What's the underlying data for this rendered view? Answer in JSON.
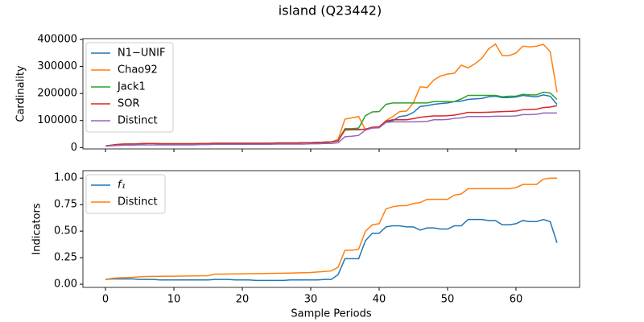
{
  "title": "island (Q23442)",
  "chart_data": [
    {
      "type": "line",
      "ylabel": "Cardinality",
      "xlim": [
        -3.3,
        69.3
      ],
      "ylim": [
        -5000,
        403000
      ],
      "xticks": [
        0,
        10,
        20,
        30,
        40,
        50,
        60
      ],
      "show_xtick_labels": false,
      "yticks": [
        0,
        100000,
        200000,
        300000,
        400000
      ],
      "legend": "upper left",
      "x": [
        0,
        1,
        2,
        3,
        4,
        5,
        6,
        7,
        8,
        9,
        10,
        11,
        12,
        13,
        14,
        15,
        16,
        17,
        18,
        19,
        20,
        21,
        22,
        23,
        24,
        25,
        26,
        27,
        28,
        29,
        30,
        31,
        32,
        33,
        34,
        35,
        36,
        37,
        38,
        39,
        40,
        41,
        42,
        43,
        44,
        45,
        46,
        47,
        48,
        49,
        50,
        51,
        52,
        53,
        54,
        55,
        56,
        57,
        58,
        59,
        60,
        61,
        62,
        63,
        64,
        65,
        66
      ],
      "series": [
        {
          "name": "N1−UNIF",
          "color": "#1f77b4",
          "values": [
            6000,
            9000,
            12000,
            13000,
            13000,
            14000,
            15000,
            15000,
            14000,
            14000,
            14000,
            14000,
            14000,
            14000,
            15000,
            15000,
            16000,
            16000,
            16000,
            16000,
            16000,
            16000,
            16000,
            16000,
            16000,
            17000,
            17000,
            17000,
            17000,
            18000,
            18000,
            19000,
            20000,
            21000,
            25000,
            65000,
            66000,
            66000,
            68000,
            75000,
            75000,
            95000,
            100000,
            115000,
            118000,
            130000,
            152000,
            155000,
            160000,
            163000,
            165000,
            170000,
            172000,
            178000,
            180000,
            182000,
            188000,
            190000,
            185000,
            185000,
            187000,
            193000,
            190000,
            188000,
            195000,
            190000,
            160000
          ]
        },
        {
          "name": "Chao92",
          "color": "#ff7f0e",
          "values": [
            6000,
            9000,
            12000,
            13000,
            13000,
            14000,
            15000,
            15000,
            14000,
            14000,
            14000,
            14000,
            14000,
            14000,
            15000,
            15000,
            16000,
            16000,
            16000,
            16000,
            16000,
            16000,
            16000,
            16000,
            16000,
            17000,
            17000,
            17000,
            17000,
            18000,
            18000,
            19000,
            20000,
            21000,
            30000,
            105000,
            110000,
            115000,
            65000,
            75000,
            75000,
            100000,
            115000,
            133000,
            135000,
            165000,
            225000,
            222000,
            250000,
            265000,
            272000,
            275000,
            305000,
            295000,
            310000,
            330000,
            365000,
            383000,
            340000,
            340000,
            350000,
            375000,
            373000,
            375000,
            382000,
            355000,
            205000
          ]
        },
        {
          "name": "Jack1",
          "color": "#2ca02c",
          "values": [
            6000,
            9000,
            12000,
            13000,
            13000,
            14000,
            15000,
            15000,
            14000,
            14000,
            14000,
            14000,
            14000,
            14000,
            15000,
            15000,
            16000,
            16000,
            16000,
            16000,
            16000,
            16000,
            16000,
            16000,
            16000,
            17000,
            17000,
            17000,
            17000,
            18000,
            18000,
            19000,
            20000,
            21000,
            25000,
            70000,
            70000,
            72000,
            118000,
            132000,
            133000,
            160000,
            165000,
            165000,
            165000,
            165000,
            165000,
            165000,
            170000,
            170000,
            170000,
            170000,
            180000,
            193000,
            193000,
            193000,
            193000,
            193000,
            188000,
            190000,
            190000,
            197000,
            195000,
            195000,
            205000,
            202000,
            178000
          ]
        },
        {
          "name": "SOR",
          "color": "#d62728",
          "values": [
            6000,
            9000,
            12000,
            13000,
            13000,
            14000,
            15000,
            15000,
            14000,
            14000,
            14000,
            14000,
            14000,
            14000,
            15000,
            15000,
            16000,
            16000,
            16000,
            16000,
            16000,
            16000,
            16000,
            16000,
            16000,
            17000,
            17000,
            17000,
            17000,
            18000,
            18000,
            19000,
            20000,
            21000,
            25000,
            65000,
            67000,
            67000,
            68000,
            75000,
            77000,
            98000,
            103000,
            103000,
            103000,
            107000,
            112000,
            115000,
            117000,
            117000,
            118000,
            120000,
            125000,
            130000,
            130000,
            130000,
            131000,
            132000,
            133000,
            134000,
            135000,
            140000,
            141000,
            142000,
            148000,
            150000,
            155000
          ]
        },
        {
          "name": "Distinct",
          "color": "#9467bd",
          "values": [
            5000,
            7000,
            8000,
            9000,
            9000,
            10000,
            10000,
            10000,
            10000,
            10000,
            10000,
            10000,
            10000,
            10000,
            11000,
            11000,
            12000,
            12000,
            12000,
            12000,
            12000,
            12000,
            12000,
            12000,
            12000,
            13000,
            13000,
            13000,
            13000,
            13000,
            14000,
            14000,
            15000,
            15000,
            18000,
            40000,
            42000,
            45000,
            65000,
            72000,
            73000,
            93000,
            95000,
            95000,
            95000,
            95000,
            96000,
            97000,
            103000,
            103000,
            104000,
            108000,
            110000,
            115000,
            115000,
            115000,
            115000,
            116000,
            116000,
            116000,
            117000,
            122000,
            122000,
            123000,
            128000,
            128000,
            128000
          ]
        }
      ]
    },
    {
      "type": "line",
      "ylabel": "Indicators",
      "xlabel": "Sample Periods",
      "xlim": [
        -3.3,
        69.3
      ],
      "ylim": [
        -0.03,
        1.07
      ],
      "xticks": [
        0,
        10,
        20,
        30,
        40,
        50,
        60
      ],
      "show_xtick_labels": true,
      "yticks": [
        {
          "value": 0,
          "label": "0.00"
        },
        {
          "value": 0.25,
          "label": "0.25"
        },
        {
          "value": 0.5,
          "label": "0.50"
        },
        {
          "value": 0.75,
          "label": "0.75"
        },
        {
          "value": 1,
          "label": "1.00"
        }
      ],
      "legend": "upper left",
      "x": [
        0,
        1,
        2,
        3,
        4,
        5,
        6,
        7,
        8,
        9,
        10,
        11,
        12,
        13,
        14,
        15,
        16,
        17,
        18,
        19,
        20,
        21,
        22,
        23,
        24,
        25,
        26,
        27,
        28,
        29,
        30,
        31,
        32,
        33,
        34,
        35,
        36,
        37,
        38,
        39,
        40,
        41,
        42,
        43,
        44,
        45,
        46,
        47,
        48,
        49,
        50,
        51,
        52,
        53,
        54,
        55,
        56,
        57,
        58,
        59,
        60,
        61,
        62,
        63,
        64,
        65,
        66
      ],
      "series": [
        {
          "name": "f₁",
          "color": "#1f77b4",
          "values": [
            0.045,
            0.05,
            0.05,
            0.05,
            0.05,
            0.045,
            0.045,
            0.045,
            0.04,
            0.04,
            0.04,
            0.04,
            0.04,
            0.04,
            0.04,
            0.04,
            0.045,
            0.045,
            0.045,
            0.04,
            0.04,
            0.04,
            0.035,
            0.035,
            0.035,
            0.035,
            0.035,
            0.04,
            0.04,
            0.04,
            0.04,
            0.04,
            0.045,
            0.045,
            0.09,
            0.24,
            0.24,
            0.24,
            0.41,
            0.48,
            0.48,
            0.54,
            0.55,
            0.55,
            0.54,
            0.54,
            0.51,
            0.53,
            0.53,
            0.52,
            0.52,
            0.55,
            0.55,
            0.61,
            0.61,
            0.61,
            0.6,
            0.6,
            0.56,
            0.56,
            0.57,
            0.6,
            0.59,
            0.59,
            0.61,
            0.59,
            0.39
          ]
        },
        {
          "name": "Distinct",
          "color": "#ff7f0e",
          "values": [
            0.045,
            0.055,
            0.06,
            0.062,
            0.065,
            0.07,
            0.072,
            0.073,
            0.074,
            0.075,
            0.075,
            0.076,
            0.077,
            0.078,
            0.079,
            0.08,
            0.095,
            0.095,
            0.096,
            0.097,
            0.098,
            0.1,
            0.1,
            0.101,
            0.102,
            0.103,
            0.104,
            0.105,
            0.107,
            0.108,
            0.11,
            0.115,
            0.12,
            0.125,
            0.16,
            0.32,
            0.32,
            0.33,
            0.5,
            0.56,
            0.57,
            0.71,
            0.73,
            0.74,
            0.74,
            0.76,
            0.77,
            0.8,
            0.8,
            0.8,
            0.8,
            0.84,
            0.85,
            0.9,
            0.9,
            0.9,
            0.9,
            0.9,
            0.9,
            0.9,
            0.91,
            0.94,
            0.94,
            0.94,
            0.99,
            1.0,
            1.0
          ]
        }
      ]
    }
  ]
}
